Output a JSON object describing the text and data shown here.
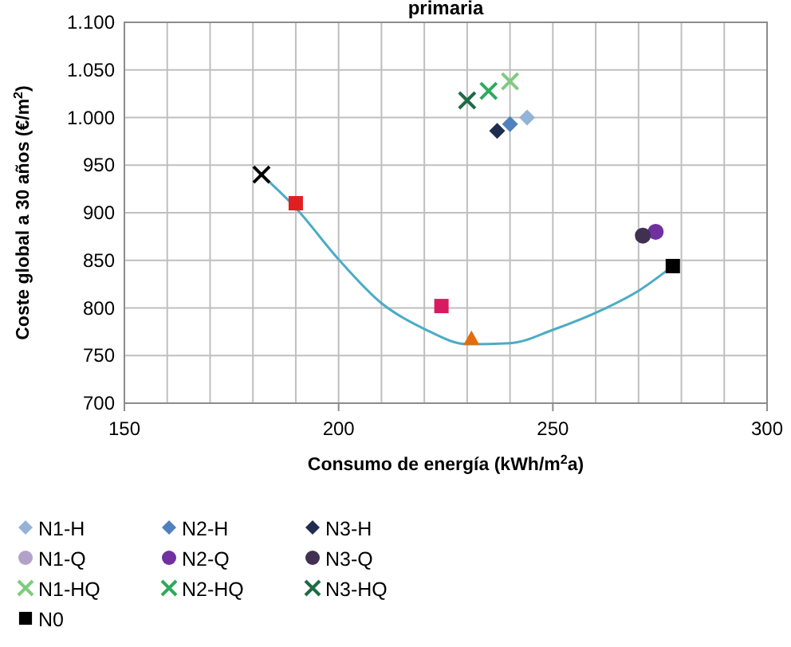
{
  "chart_data": {
    "type": "scatter",
    "title": "primaria",
    "xlabel": "Consumo de energía  (kWh/m$^{2}$a)",
    "ylabel": "Coste global a 30 años (€/m$^{2}$)",
    "xlim": [
      150,
      300
    ],
    "xticks": [
      150,
      200,
      250,
      300
    ],
    "ylim": [
      700,
      1100
    ],
    "yticks": [
      {
        "value": 700,
        "label": "700"
      },
      {
        "value": 750,
        "label": "750"
      },
      {
        "value": 800,
        "label": "800"
      },
      {
        "value": 850,
        "label": "850"
      },
      {
        "value": 900,
        "label": "900"
      },
      {
        "value": 950,
        "label": "950"
      },
      {
        "value": 1000,
        "label": "1.000"
      },
      {
        "value": 1050,
        "label": "1.050"
      },
      {
        "value": 1100,
        "label": "1.100"
      }
    ],
    "grid": true,
    "legend": "bottom",
    "series": [
      {
        "type": "line",
        "color": "#4bacc6",
        "x": [
          182,
          190,
          200,
          210,
          220,
          230,
          240,
          250,
          262,
          270,
          278
        ],
        "values": [
          940,
          905,
          851,
          805,
          778,
          762,
          763,
          777,
          799,
          818,
          844
        ]
      },
      {
        "name": "N1-H",
        "color": "#95b3d7",
        "marker": "diamond",
        "x": [
          244
        ],
        "values": [
          1000
        ]
      },
      {
        "name": "N2-H",
        "color": "#4f81bd",
        "marker": "diamond",
        "x": [
          240
        ],
        "values": [
          993
        ]
      },
      {
        "name": "N3-H",
        "color": "#1f2d4f",
        "marker": "diamond",
        "x": [
          237
        ],
        "values": [
          986
        ]
      },
      {
        "name": "N1-Q",
        "color": "#b3a2c7",
        "marker": "circle",
        "x": [
          null
        ],
        "values": [
          null
        ]
      },
      {
        "name": "N2-Q",
        "color": "#7030a0",
        "marker": "circle",
        "x": [
          274
        ],
        "values": [
          880
        ]
      },
      {
        "name": "N3-Q",
        "color": "#403152",
        "marker": "circle",
        "x": [
          271
        ],
        "values": [
          876
        ]
      },
      {
        "name": "N1-HQ",
        "color": "#7dcc7d",
        "marker": "cross",
        "x": [
          240
        ],
        "values": [
          1038
        ]
      },
      {
        "name": "N2-HQ",
        "color": "#2eaa5c",
        "marker": "cross",
        "x": [
          235
        ],
        "values": [
          1028
        ]
      },
      {
        "name": "N3-HQ",
        "color": "#1e6b45",
        "marker": "cross",
        "x": [
          230
        ],
        "values": [
          1018
        ]
      },
      {
        "name": "N0",
        "color": "#000000",
        "marker": "square",
        "x": [
          278
        ],
        "values": [
          844
        ]
      },
      {
        "color": "#000000",
        "marker": "cross",
        "x": [
          182
        ],
        "values": [
          940
        ]
      },
      {
        "color": "#e02020",
        "marker": "square",
        "x": [
          190
        ],
        "values": [
          910
        ]
      },
      {
        "color": "#d81b60",
        "marker": "square",
        "x": [
          224
        ],
        "values": [
          802
        ]
      },
      {
        "color": "#e46c0a",
        "marker": "triangle",
        "x": [
          231
        ],
        "values": [
          768
        ]
      }
    ]
  }
}
